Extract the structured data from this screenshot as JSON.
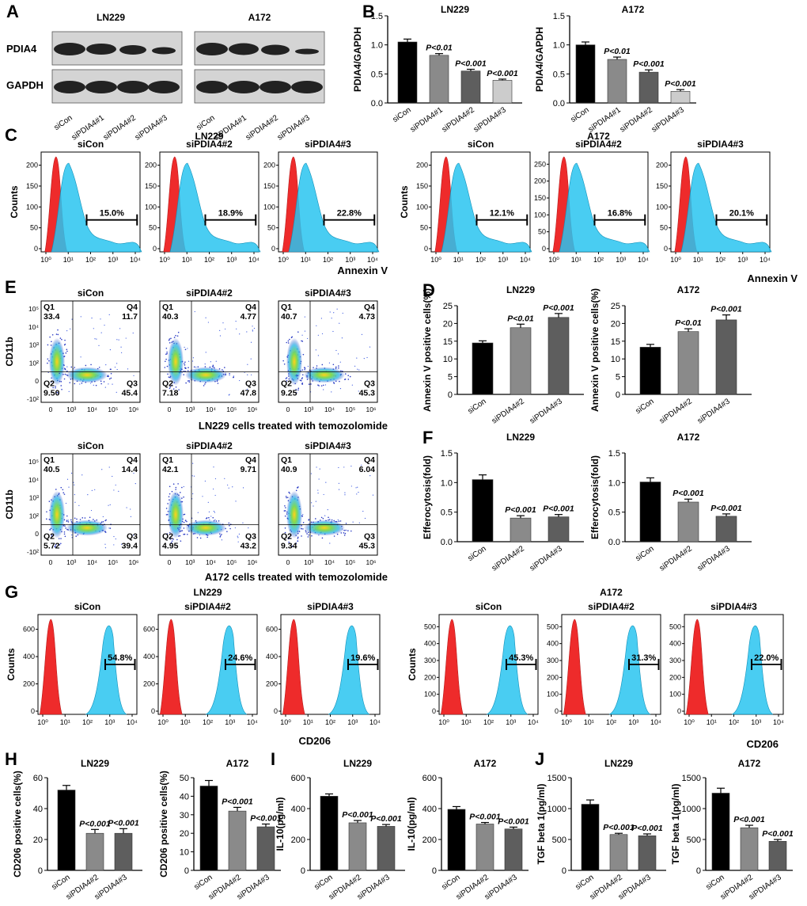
{
  "panel_labels": [
    "A",
    "B",
    "C",
    "D",
    "E",
    "F",
    "G",
    "H",
    "I",
    "J"
  ],
  "western_blot": {
    "cell_lines": [
      "LN229",
      "A172"
    ],
    "proteins": [
      "PDIA4",
      "GAPDH"
    ],
    "lanes": [
      "siCon",
      "siPDIA4#1",
      "siPDIA4#2",
      "siPDIA4#3"
    ]
  },
  "annexin_histograms": {
    "x_label": "Annexin V",
    "y_label": "Counts",
    "x_ticks": [
      "10⁰",
      "10¹",
      "10²",
      "10³",
      "10⁴"
    ],
    "groups": [
      {
        "cell": "LN229",
        "panels": [
          {
            "title": "siCon",
            "percent": "15.0%",
            "yticks": [
              "0",
              "50",
              "100",
              "150",
              "200"
            ]
          },
          {
            "title": "siPDIA4#2",
            "percent": "18.9%",
            "yticks": [
              "0",
              "50",
              "100",
              "150",
              "200"
            ]
          },
          {
            "title": "siPDIA4#3",
            "percent": "22.8%",
            "yticks": [
              "0",
              "50",
              "100",
              "150",
              "200"
            ]
          }
        ]
      },
      {
        "cell": "A172",
        "panels": [
          {
            "title": "siCon",
            "percent": "12.1%",
            "yticks": [
              "0",
              "50",
              "100",
              "150",
              "200"
            ]
          },
          {
            "title": "siPDIA4#2",
            "percent": "16.8%",
            "yticks": [
              "0",
              "50",
              "100",
              "150",
              "200",
              "250"
            ]
          },
          {
            "title": "siPDIA4#3",
            "percent": "20.1%",
            "yticks": [
              "0",
              "50",
              "100",
              "150",
              "200"
            ]
          }
        ]
      }
    ]
  },
  "flow_scatter": {
    "y_label": "CD11b",
    "y_ticks": [
      "-10²",
      "0",
      "10²",
      "10³",
      "10⁴",
      "10⁵"
    ],
    "x_ticks": [
      "0",
      "10³",
      "10⁴",
      "10⁵",
      "10⁶"
    ],
    "rows": [
      {
        "caption": "LN229 cells treated with temozolomide",
        "panels": [
          {
            "title": "siCon",
            "q1": "33.4",
            "q2": "9.50",
            "q3": "45.4",
            "q4": "11.7"
          },
          {
            "title": "siPDIA4#2",
            "q1": "40.3",
            "q2": "7.18",
            "q3": "47.8",
            "q4": "4.77"
          },
          {
            "title": "siPDIA4#3",
            "q1": "40.7",
            "q2": "9.25",
            "q3": "45.3",
            "q4": "4.73"
          }
        ]
      },
      {
        "caption": "A172 cells treated with temozolomide",
        "panels": [
          {
            "title": "siCon",
            "q1": "40.5",
            "q2": "5.72",
            "q3": "39.4",
            "q4": "14.4"
          },
          {
            "title": "siPDIA4#2",
            "q1": "42.1",
            "q2": "4.95",
            "q3": "43.2",
            "q4": "9.71"
          },
          {
            "title": "siPDIA4#3",
            "q1": "40.9",
            "q2": "9.34",
            "q3": "45.3",
            "q4": "6.04"
          }
        ]
      }
    ]
  },
  "cd206_histograms": {
    "x_label": "CD206",
    "y_label": "Counts",
    "x_ticks": [
      "10⁰",
      "10¹",
      "10²",
      "10³",
      "10⁴"
    ],
    "groups": [
      {
        "cell": "LN229",
        "panels": [
          {
            "title": "siCon",
            "percent": "54.8%",
            "yticks": [
              "0",
              "200",
              "400",
              "600"
            ]
          },
          {
            "title": "siPDIA4#2",
            "percent": "24.6%",
            "yticks": [
              "0",
              "200",
              "400",
              "600"
            ]
          },
          {
            "title": "siPDIA4#3",
            "percent": "19.6%",
            "yticks": [
              "0",
              "200",
              "400",
              "600"
            ]
          }
        ]
      },
      {
        "cell": "A172",
        "panels": [
          {
            "title": "siCon",
            "percent": "45.3%",
            "yticks": [
              "0",
              "100",
              "200",
              "300",
              "400",
              "500"
            ]
          },
          {
            "title": "siPDIA4#2",
            "percent": "31.3%",
            "yticks": [
              "0",
              "100",
              "200",
              "300",
              "400",
              "500"
            ]
          },
          {
            "title": "siPDIA4#3",
            "percent": "22.0%",
            "yticks": [
              "0",
              "100",
              "200",
              "300",
              "400",
              "500"
            ]
          }
        ]
      }
    ]
  },
  "chart_data": [
    {
      "id": "B-LN229",
      "type": "bar",
      "title": "LN229",
      "ylabel": "PDIA4/GAPDH",
      "ylim": [
        0,
        1.5
      ],
      "yticks": [
        "0.0",
        "0.5",
        "1.0",
        "1.5"
      ],
      "categories": [
        "siCon",
        "siPDIA4#1",
        "siPDIA4#2",
        "siPDIA4#3"
      ],
      "values": [
        1.05,
        0.82,
        0.55,
        0.39
      ],
      "errors": [
        0.05,
        0.03,
        0.03,
        0.02
      ],
      "colors": [
        "#000000",
        "#8a8a8a",
        "#5e5e5e",
        "#cccccc"
      ],
      "annotations": [
        "",
        "P<0.01",
        "P<0.001",
        "P<0.001"
      ]
    },
    {
      "id": "B-A172",
      "type": "bar",
      "title": "A172",
      "ylabel": "PDIA4/GAPDH",
      "ylim": [
        0,
        1.5
      ],
      "yticks": [
        "0.0",
        "0.5",
        "1.0",
        "1.5"
      ],
      "categories": [
        "siCon",
        "siPDIA4#1",
        "siPDIA4#2",
        "siPDIA4#3"
      ],
      "values": [
        1.0,
        0.75,
        0.53,
        0.2
      ],
      "errors": [
        0.05,
        0.04,
        0.04,
        0.03
      ],
      "colors": [
        "#000000",
        "#8a8a8a",
        "#5e5e5e",
        "#cccccc"
      ],
      "annotations": [
        "",
        "P<0.01",
        "P<0.001",
        "P<0.001"
      ]
    },
    {
      "id": "D-LN229",
      "type": "bar",
      "title": "LN229",
      "ylabel": "Annexin V positive cells(%)",
      "ylim": [
        0,
        25
      ],
      "yticks": [
        "0",
        "5",
        "10",
        "15",
        "20",
        "25"
      ],
      "categories": [
        "siCon",
        "siPDIA4#2",
        "siPDIA4#3"
      ],
      "values": [
        14.5,
        18.8,
        21.7
      ],
      "errors": [
        0.6,
        1.0,
        1.1
      ],
      "colors": [
        "#000000",
        "#8a8a8a",
        "#5e5e5e"
      ],
      "annotations": [
        "",
        "P<0.01",
        "P<0.001"
      ]
    },
    {
      "id": "D-A172",
      "type": "bar",
      "title": "A172",
      "ylabel": "Annexin V positive cells(%)",
      "ylim": [
        0,
        25
      ],
      "yticks": [
        "0",
        "5",
        "10",
        "15",
        "20",
        "25"
      ],
      "categories": [
        "siCon",
        "siPDIA4#2",
        "siPDIA4#3"
      ],
      "values": [
        13.3,
        17.7,
        21.0
      ],
      "errors": [
        0.8,
        0.8,
        1.4
      ],
      "colors": [
        "#000000",
        "#8a8a8a",
        "#5e5e5e"
      ],
      "annotations": [
        "",
        "P<0.01",
        "P<0.001"
      ]
    },
    {
      "id": "F-LN229",
      "type": "bar",
      "title": "LN229",
      "ylabel": "Efferocytosis(fold)",
      "ylim": [
        0,
        1.5
      ],
      "yticks": [
        "0.0",
        "0.5",
        "1.0",
        "1.5"
      ],
      "categories": [
        "siCon",
        "siPDIA4#2",
        "siPDIA4#3"
      ],
      "values": [
        1.05,
        0.4,
        0.42
      ],
      "errors": [
        0.08,
        0.04,
        0.04
      ],
      "colors": [
        "#000000",
        "#8a8a8a",
        "#5e5e5e"
      ],
      "annotations": [
        "",
        "P<0.001",
        "P<0.001"
      ]
    },
    {
      "id": "F-A172",
      "type": "bar",
      "title": "A172",
      "ylabel": "Efferocytosis(fold)",
      "ylim": [
        0,
        1.5
      ],
      "yticks": [
        "0.0",
        "0.5",
        "1.0",
        "1.5"
      ],
      "categories": [
        "siCon",
        "siPDIA4#2",
        "siPDIA4#3"
      ],
      "values": [
        1.01,
        0.67,
        0.43
      ],
      "errors": [
        0.07,
        0.05,
        0.04
      ],
      "colors": [
        "#000000",
        "#8a8a8a",
        "#5e5e5e"
      ],
      "annotations": [
        "",
        "P<0.001",
        "P<0.001"
      ]
    },
    {
      "id": "H-LN229",
      "type": "bar",
      "title": "LN229",
      "ylabel": "CD206 positive cells(%)",
      "ylim": [
        0,
        60
      ],
      "yticks": [
        "0",
        "20",
        "40",
        "60"
      ],
      "categories": [
        "siCon",
        "siPDIA4#2",
        "siPDIA4#3"
      ],
      "values": [
        52,
        24,
        24
      ],
      "errors": [
        3,
        2.5,
        3
      ],
      "colors": [
        "#000000",
        "#8a8a8a",
        "#5e5e5e"
      ],
      "annotations": [
        "",
        "P<0.001",
        "P<0.001"
      ]
    },
    {
      "id": "H-A172",
      "type": "bar",
      "title": "A172",
      "ylabel": "CD206 positive cells(%)",
      "ylim": [
        0,
        50
      ],
      "yticks": [
        "0",
        "10",
        "20",
        "30",
        "40",
        "50"
      ],
      "categories": [
        "siCon",
        "siPDIA4#2",
        "siPDIA4#3"
      ],
      "values": [
        45.5,
        32,
        23.5
      ],
      "errors": [
        3,
        2,
        1.5
      ],
      "colors": [
        "#000000",
        "#8a8a8a",
        "#5e5e5e"
      ],
      "annotations": [
        "",
        "P<0.001",
        "P<0.001"
      ]
    },
    {
      "id": "I-LN229",
      "type": "bar",
      "title": "LN229",
      "ylabel": "IL-10(pg/ml)",
      "ylim": [
        0,
        600
      ],
      "yticks": [
        "0",
        "200",
        "400",
        "600"
      ],
      "categories": [
        "siCon",
        "siPDIA4#2",
        "siPDIA4#3"
      ],
      "values": [
        480,
        308,
        285
      ],
      "errors": [
        15,
        15,
        12
      ],
      "colors": [
        "#000000",
        "#8a8a8a",
        "#5e5e5e"
      ],
      "annotations": [
        "",
        "P<0.001",
        "P<0.001"
      ]
    },
    {
      "id": "I-A172",
      "type": "bar",
      "title": "A172",
      "ylabel": "IL-10(pg/ml)",
      "ylim": [
        0,
        600
      ],
      "yticks": [
        "0",
        "200",
        "400",
        "600"
      ],
      "categories": [
        "siCon",
        "siPDIA4#2",
        "siPDIA4#3"
      ],
      "values": [
        395,
        300,
        268
      ],
      "errors": [
        18,
        10,
        12
      ],
      "colors": [
        "#000000",
        "#8a8a8a",
        "#5e5e5e"
      ],
      "annotations": [
        "",
        "P<0.001",
        "P<0.001"
      ]
    },
    {
      "id": "J-LN229",
      "type": "bar",
      "title": "LN229",
      "ylabel": "TGF beta 1(pg/ml)",
      "ylim": [
        0,
        1500
      ],
      "yticks": [
        "0",
        "500",
        "1000",
        "1500"
      ],
      "categories": [
        "siCon",
        "siPDIA4#2",
        "siPDIA4#3"
      ],
      "values": [
        1070,
        580,
        560
      ],
      "errors": [
        70,
        20,
        30
      ],
      "colors": [
        "#000000",
        "#8a8a8a",
        "#5e5e5e"
      ],
      "annotations": [
        "",
        "P<0.001",
        "P<0.001"
      ]
    },
    {
      "id": "J-A172",
      "type": "bar",
      "title": "A172",
      "ylabel": "TGF beta 1(pg/ml)",
      "ylim": [
        0,
        1500
      ],
      "yticks": [
        "0",
        "500",
        "1000",
        "1500"
      ],
      "categories": [
        "siCon",
        "siPDIA4#2",
        "siPDIA4#3"
      ],
      "values": [
        1250,
        690,
        470
      ],
      "errors": [
        80,
        40,
        30
      ],
      "colors": [
        "#000000",
        "#8a8a8a",
        "#5e5e5e"
      ],
      "annotations": [
        "",
        "P<0.001",
        "P<0.001"
      ]
    }
  ]
}
